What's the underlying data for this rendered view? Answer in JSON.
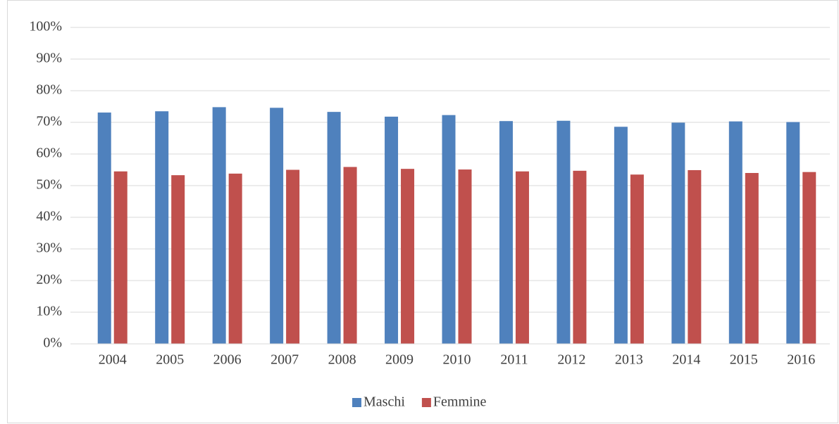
{
  "chart_data": {
    "type": "bar",
    "categories": [
      "2004",
      "2005",
      "2006",
      "2007",
      "2008",
      "2009",
      "2010",
      "2011",
      "2012",
      "2013",
      "2014",
      "2015",
      "2016"
    ],
    "series": [
      {
        "name": "Maschi",
        "color": "#4f81bd",
        "values": [
          73.1,
          73.5,
          74.8,
          74.6,
          73.3,
          71.8,
          72.3,
          70.4,
          70.5,
          68.6,
          69.9,
          70.3,
          70.1
        ]
      },
      {
        "name": "Femmine",
        "color": "#c0504d",
        "values": [
          54.5,
          53.3,
          53.8,
          55.0,
          55.9,
          55.3,
          55.1,
          54.5,
          54.7,
          53.5,
          54.9,
          54.0,
          54.3
        ]
      }
    ],
    "ylim": [
      0,
      100
    ],
    "yticks": [
      {
        "value": 0,
        "label": "0%"
      },
      {
        "value": 10,
        "label": "10%"
      },
      {
        "value": 20,
        "label": "20%"
      },
      {
        "value": 30,
        "label": "30%"
      },
      {
        "value": 40,
        "label": "40%"
      },
      {
        "value": 50,
        "label": "50%"
      },
      {
        "value": 60,
        "label": "60%"
      },
      {
        "value": 70,
        "label": "70%"
      },
      {
        "value": 80,
        "label": "80%"
      },
      {
        "value": 90,
        "label": "90%"
      },
      {
        "value": 100,
        "label": "100%"
      }
    ],
    "grid": true,
    "legend": "bottom"
  }
}
